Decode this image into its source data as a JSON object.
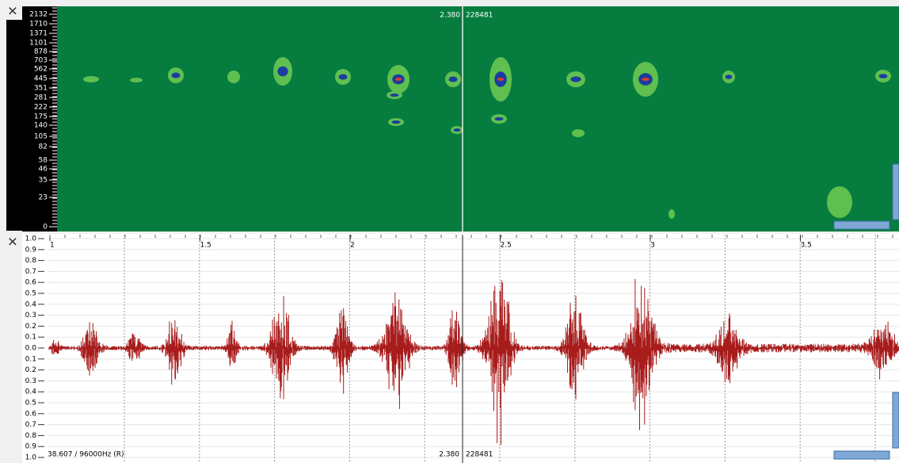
{
  "spectrogram": {
    "close": "✕",
    "freq_labels": [
      "2132",
      "1710",
      "1371",
      "1101",
      "878",
      "703",
      "562",
      "445",
      "351",
      "281",
      "222",
      "175",
      "140",
      "105",
      "82",
      "58",
      "46",
      "35",
      "23",
      "0"
    ],
    "cursor_time": "2.380",
    "cursor_sample": "228481"
  },
  "waveform": {
    "close": "✕",
    "amp_labels": [
      "1.0",
      "0.9",
      "0.8",
      "0.7",
      "0.6",
      "0.5",
      "0.4",
      "0.3",
      "0.2",
      "0.1",
      "0.0",
      "0.1",
      "0.2",
      "0.3",
      "0.4",
      "0.5",
      "0.6",
      "0.7",
      "0.8",
      "0.9",
      "1.0"
    ],
    "time_labels": [
      "1",
      "1.5",
      "2",
      "2.5",
      "3",
      "3.5"
    ],
    "status": "38.607 / 96000Hz (R)",
    "cursor_time": "2.380",
    "cursor_sample": "228481"
  }
}
